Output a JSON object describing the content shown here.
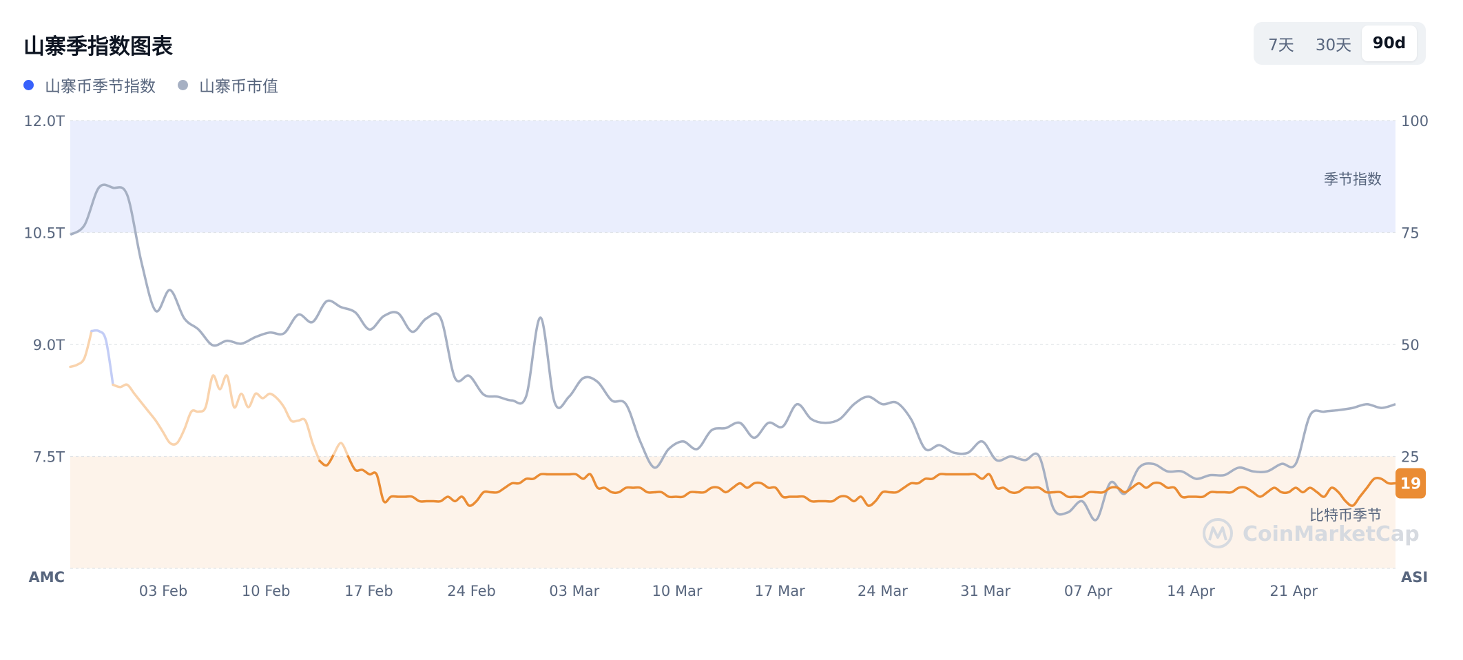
{
  "header": {
    "title": "山寨季指数图表",
    "legend": [
      {
        "label": "山寨币季节指数",
        "color": "#3861fb"
      },
      {
        "label": "山寨币市值",
        "color": "#a6b0c3"
      }
    ],
    "ranges": [
      {
        "label": "7天",
        "active": false
      },
      {
        "label": "30天",
        "active": false
      },
      {
        "label": "90d",
        "active": true
      }
    ]
  },
  "watermark": "CoinMarketCap",
  "chart_data": {
    "type": "line",
    "x_tick_labels": [
      "03 Feb",
      "10 Feb",
      "17 Feb",
      "24 Feb",
      "03 Mar",
      "10 Mar",
      "17 Mar",
      "24 Mar",
      "31 Mar",
      "07 Apr",
      "14 Apr",
      "21 Apr"
    ],
    "left_axis": {
      "label": "AMC",
      "ticks": [
        "12.0T",
        "10.5T",
        "9.0T",
        "7.5T"
      ],
      "range": [
        6.0,
        12.0
      ],
      "unit": "T"
    },
    "right_axis": {
      "label": "ASI",
      "ticks": [
        "100",
        "75",
        "50",
        "25"
      ],
      "range": [
        0,
        100
      ]
    },
    "zones": {
      "altcoin_season": {
        "label": "季节指数",
        "from": 75,
        "to": 100,
        "color": "#eaeefd"
      },
      "bitcoin_season": {
        "label": "比特币季节",
        "from": 0,
        "to": 25,
        "color": "#fdf3ea"
      }
    },
    "current_badge": {
      "value": "19",
      "color": "#ea8c34"
    },
    "series": [
      {
        "name": "山寨币季节指数",
        "axis": "right",
        "values": [
          45,
          45.5,
          47,
          53,
          53,
          51,
          41,
          40.5,
          41,
          39,
          37,
          35,
          33,
          30.5,
          28,
          28,
          31,
          35,
          35,
          36,
          43,
          40,
          43,
          36,
          39,
          36,
          39,
          38,
          39,
          38,
          36,
          33,
          33,
          33,
          28,
          24,
          23,
          25.5,
          28,
          25,
          22,
          22,
          21,
          21,
          15,
          16,
          16,
          16,
          16,
          15,
          15,
          15,
          15,
          16,
          15,
          16,
          14,
          15,
          17,
          17,
          17,
          18,
          19,
          19,
          20,
          20,
          21,
          21,
          21,
          21,
          21,
          21,
          20,
          21,
          18,
          18,
          17,
          17,
          18,
          18,
          18,
          17,
          17,
          17,
          16,
          16,
          16,
          17,
          17,
          17,
          18,
          18,
          17,
          18,
          19,
          18,
          19,
          19,
          18,
          18,
          16,
          16,
          16,
          16,
          15,
          15,
          15,
          15,
          16,
          16,
          15,
          16,
          14,
          15,
          17,
          17,
          17,
          18,
          19,
          19,
          20,
          20,
          21,
          21,
          21,
          21,
          21,
          21,
          20,
          21,
          18,
          18,
          17,
          17,
          18,
          18,
          18,
          17,
          17,
          17,
          16,
          16,
          16,
          17,
          17,
          17,
          18,
          18,
          17,
          18,
          19,
          18,
          19,
          19,
          18,
          18,
          16,
          16,
          16,
          16,
          17,
          17,
          17,
          17,
          18,
          18,
          17,
          16,
          17,
          18,
          17,
          17,
          18,
          17,
          18,
          17,
          16,
          18,
          17,
          15,
          14,
          16,
          18,
          20,
          20,
          19,
          19
        ]
      },
      {
        "name": "山寨币市值",
        "axis": "left",
        "values": [
          10.47,
          10.6,
          11.1,
          11.1,
          11.0,
          10.1,
          9.45,
          9.73,
          9.35,
          9.2,
          8.99,
          9.05,
          9.01,
          9.1,
          9.16,
          9.15,
          9.4,
          9.3,
          9.58,
          9.5,
          9.43,
          9.2,
          9.38,
          9.42,
          9.17,
          9.35,
          9.35,
          8.55,
          8.58,
          8.33,
          8.3,
          8.25,
          8.31,
          9.36,
          8.22,
          8.3,
          8.55,
          8.5,
          8.25,
          8.2,
          7.7,
          7.35,
          7.6,
          7.7,
          7.6,
          7.85,
          7.88,
          7.95,
          7.75,
          7.95,
          7.9,
          8.2,
          8.0,
          7.95,
          8.0,
          8.2,
          8.3,
          8.2,
          8.22,
          8.0,
          7.6,
          7.65,
          7.55,
          7.55,
          7.7,
          7.45,
          7.5,
          7.45,
          7.5,
          6.8,
          6.75,
          6.9,
          6.65,
          7.15,
          7.0,
          7.35,
          7.4,
          7.3,
          7.3,
          7.2,
          7.25,
          7.25,
          7.35,
          7.3,
          7.3,
          7.4,
          7.4,
          8.05,
          8.1,
          8.12,
          8.15,
          8.2,
          8.15,
          8.2
        ]
      }
    ]
  }
}
